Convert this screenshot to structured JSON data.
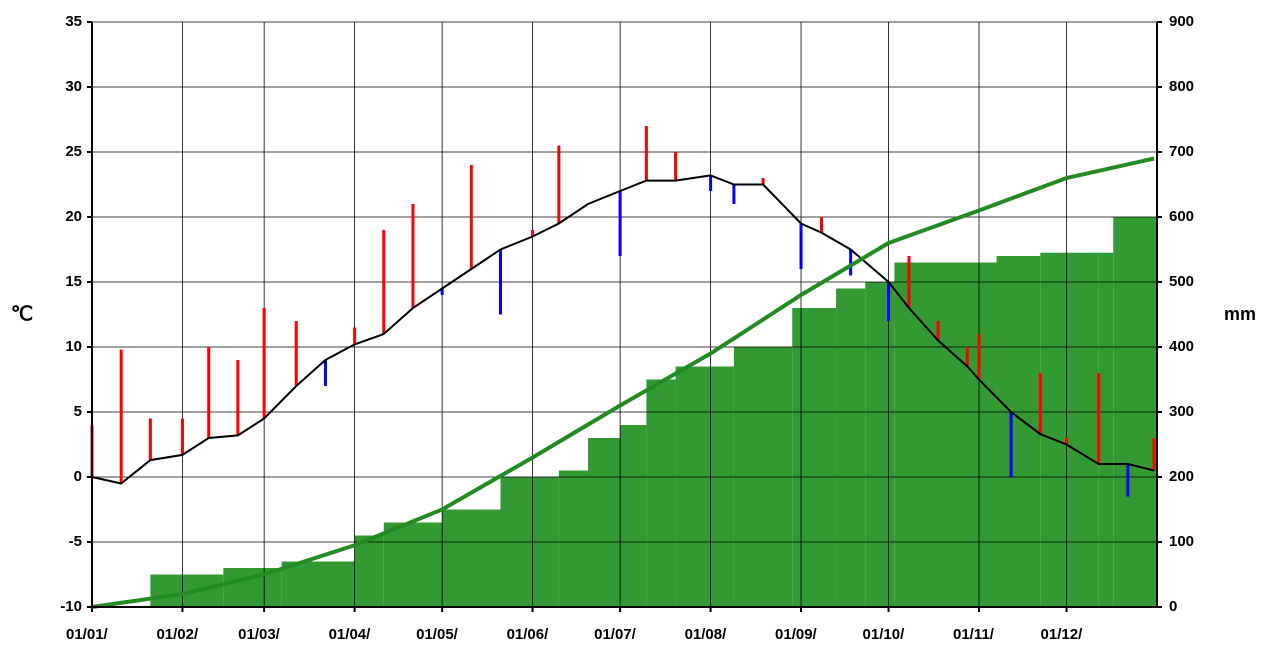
{
  "chart_data": {
    "type": "climate",
    "y_label": "℃",
    "y2_label": "mm",
    "xlim": [
      0,
      365
    ],
    "xticks": [
      {
        "value": 0,
        "label": "01/01/"
      },
      {
        "value": 31,
        "label": "01/02/"
      },
      {
        "value": 59,
        "label": "01/03/"
      },
      {
        "value": 90,
        "label": "01/04/"
      },
      {
        "value": 120,
        "label": "01/05/"
      },
      {
        "value": 151,
        "label": "01/06/"
      },
      {
        "value": 181,
        "label": "01/07/"
      },
      {
        "value": 212,
        "label": "01/08/"
      },
      {
        "value": 243,
        "label": "01/09/"
      },
      {
        "value": 273,
        "label": "01/10/"
      },
      {
        "value": 304,
        "label": "01/11/"
      },
      {
        "value": 334,
        "label": "01/12/"
      }
    ],
    "ylim": [
      -10,
      35
    ],
    "yticks": [
      -10,
      -5,
      0,
      5,
      10,
      15,
      20,
      25,
      30,
      35
    ],
    "y2lim": [
      0,
      900
    ],
    "y2ticks": [
      0,
      100,
      200,
      300,
      400,
      500,
      600,
      700,
      800,
      900
    ],
    "grid": true,
    "series": [
      {
        "kind": "line",
        "color": "#000000",
        "x": [
          0,
          10,
          20,
          31,
          40,
          50,
          59,
          70,
          80,
          90,
          100,
          110,
          120,
          130,
          140,
          151,
          160,
          170,
          181,
          190,
          200,
          212,
          220,
          230,
          243,
          250,
          260,
          273,
          280,
          290,
          300,
          304,
          315,
          325,
          334,
          345,
          355,
          364
        ],
        "values": [
          0,
          -0.5,
          1.3,
          1.7,
          3,
          3.2,
          4.5,
          7,
          9,
          10.2,
          11,
          13,
          14.5,
          16,
          17.5,
          18.5,
          19.5,
          21,
          22,
          22.8,
          22.8,
          23.2,
          22.5,
          22.5,
          19.5,
          18.8,
          17.5,
          15,
          13,
          10.5,
          8.5,
          7.5,
          5,
          3.3,
          2.5,
          1,
          1,
          0.5
        ]
      },
      {
        "kind": "deviation",
        "color_above": "#ff0000",
        "color_below": "#0000ff",
        "x": [
          0,
          10,
          20,
          31,
          40,
          50,
          59,
          70,
          80,
          90,
          100,
          110,
          120,
          130,
          140,
          151,
          160,
          170,
          181,
          190,
          200,
          212,
          220,
          230,
          243,
          250,
          260,
          273,
          280,
          290,
          300,
          304,
          315,
          325,
          334,
          345,
          355,
          364
        ],
        "values": [
          4,
          9.8,
          4.5,
          4.5,
          10,
          9,
          13,
          12,
          7,
          11.5,
          19,
          21,
          14,
          24,
          12.5,
          19,
          25.5,
          21,
          17,
          27,
          25,
          22,
          21,
          23,
          16,
          20,
          15.5,
          12,
          17,
          12,
          10,
          11,
          0,
          8,
          3,
          8,
          -1.5,
          3
        ]
      },
      {
        "kind": "step-area",
        "axis": "y2",
        "color": "#339933",
        "x": [
          0,
          20,
          45,
          65,
          90,
          100,
          120,
          140,
          160,
          170,
          181,
          190,
          200,
          220,
          240,
          255,
          265,
          275,
          310,
          325,
          345,
          350,
          365
        ],
        "values": [
          0,
          50,
          60,
          70,
          110,
          130,
          150,
          200,
          210,
          260,
          280,
          350,
          370,
          400,
          460,
          490,
          500,
          530,
          540,
          545,
          545,
          600,
          600
        ]
      },
      {
        "kind": "line",
        "axis": "y2",
        "color": "#228b22",
        "x": [
          0,
          31,
          59,
          90,
          120,
          151,
          181,
          212,
          243,
          273,
          304,
          334,
          364
        ],
        "values": [
          0,
          20,
          50,
          95,
          150,
          230,
          310,
          390,
          480,
          560,
          610,
          660,
          690
        ]
      }
    ]
  }
}
